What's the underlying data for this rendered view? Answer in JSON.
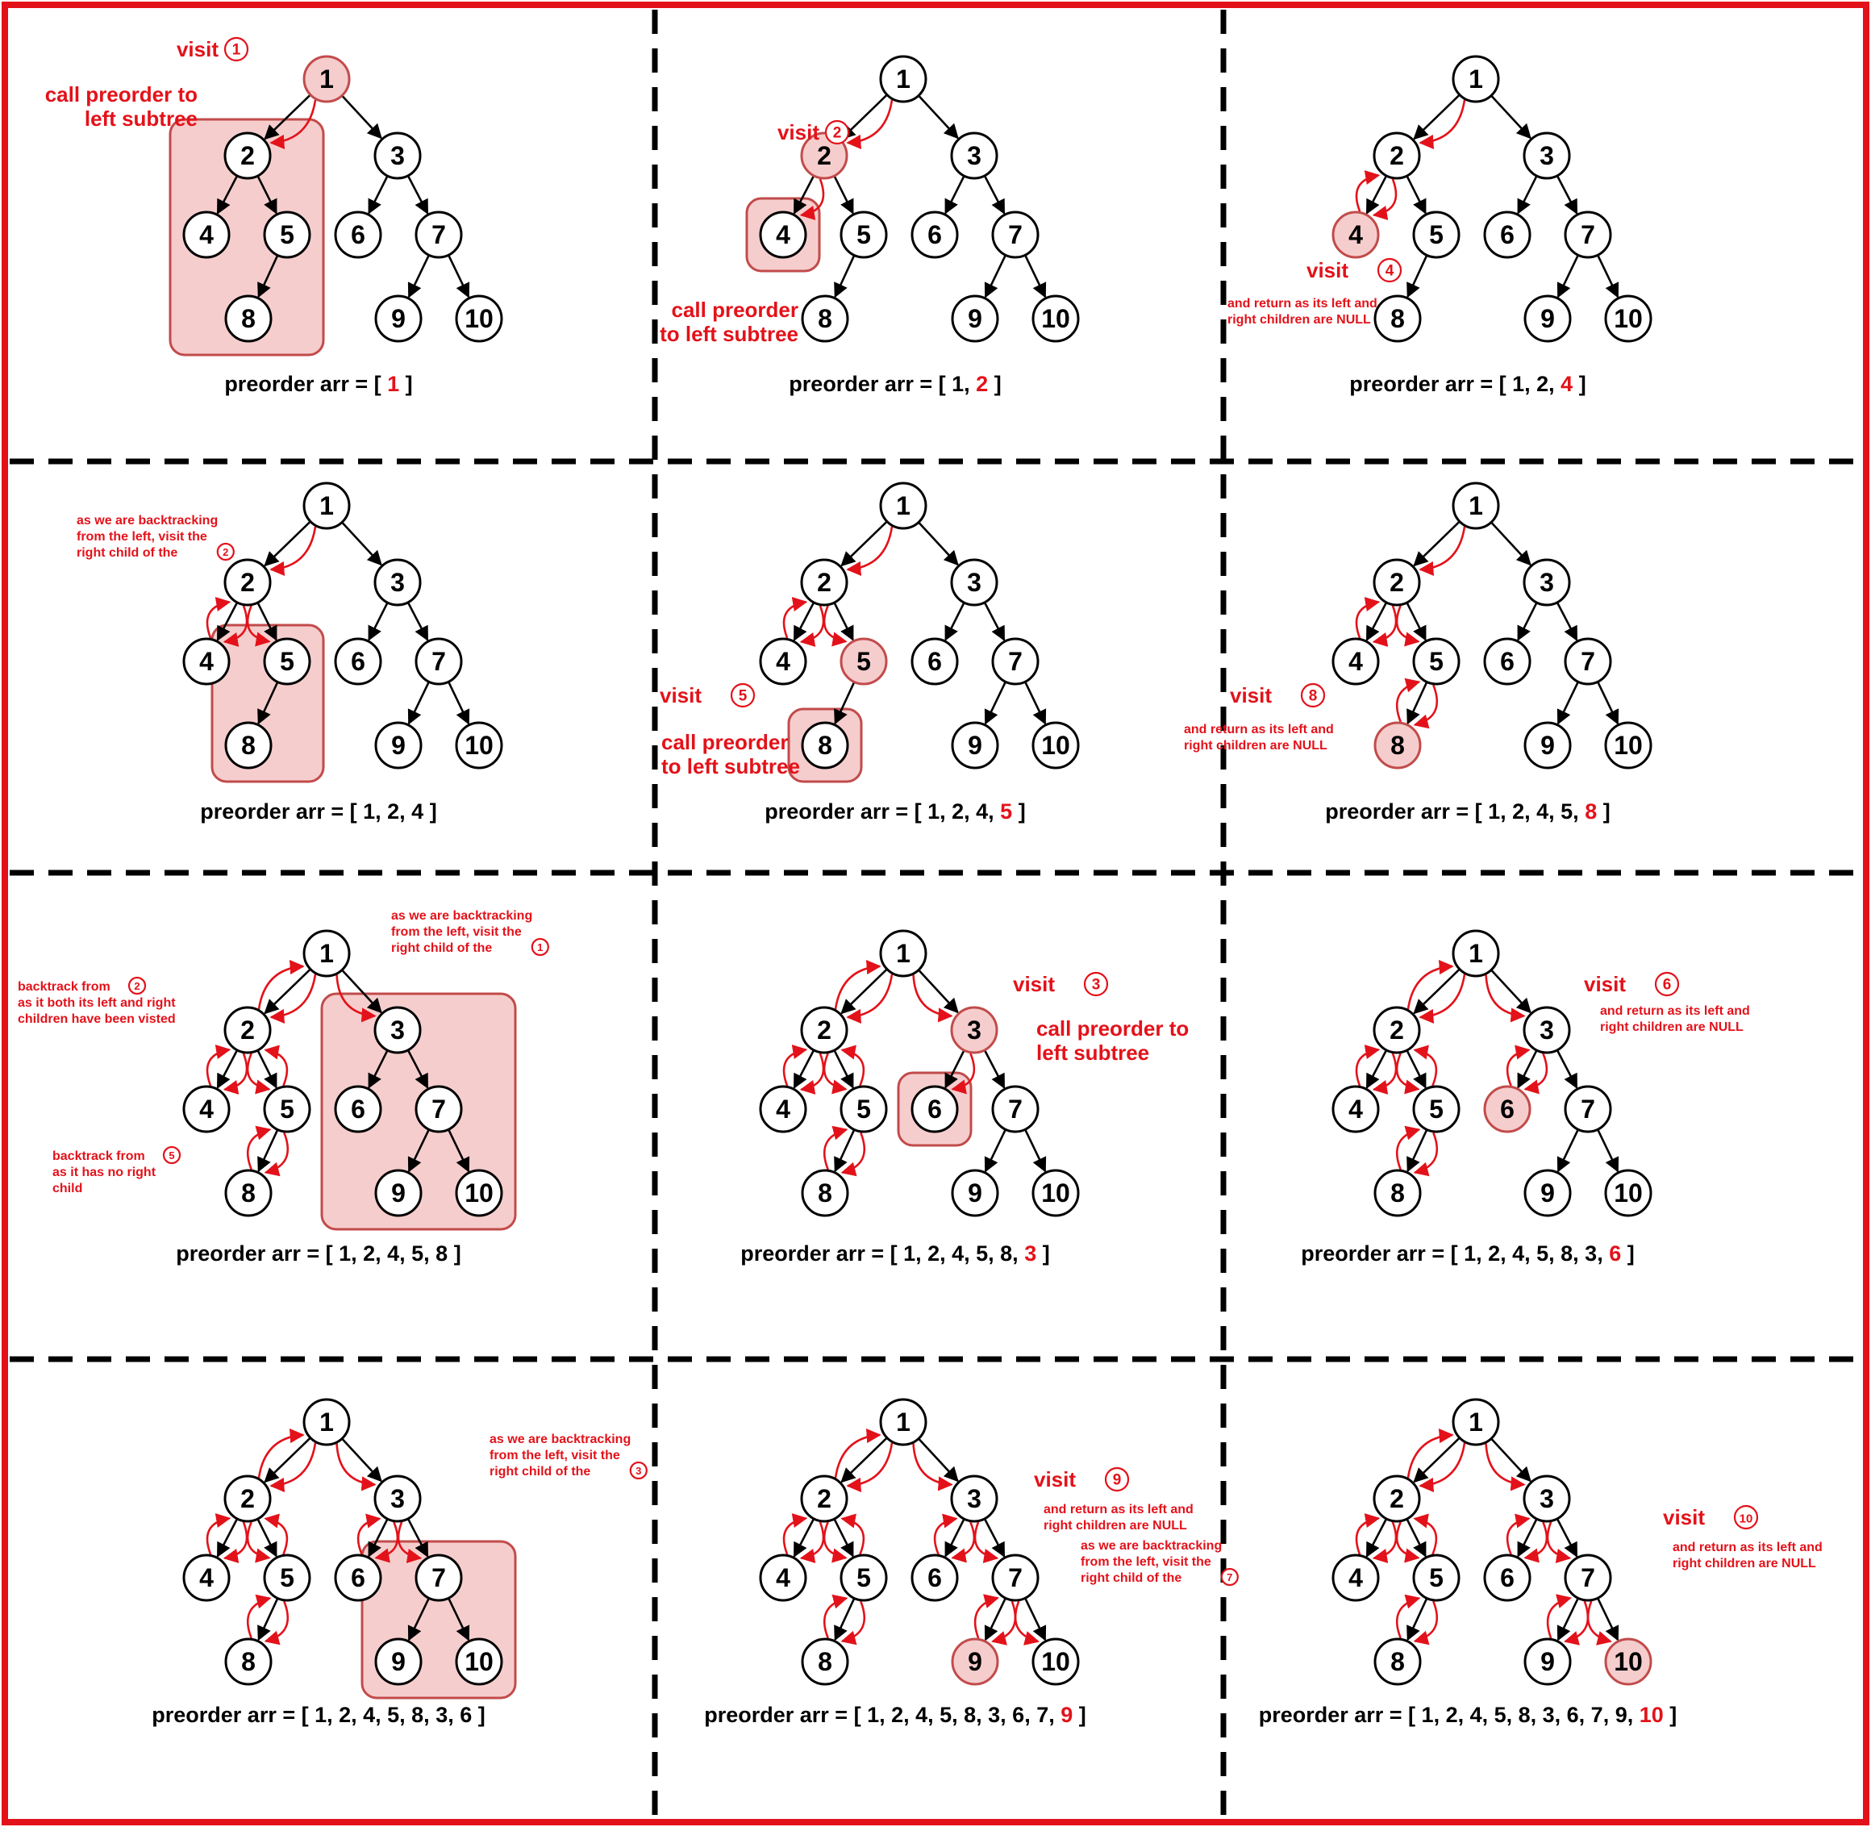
{
  "tree": {
    "nodes": [
      "1",
      "2",
      "3",
      "4",
      "5",
      "6",
      "7",
      "8",
      "9",
      "10"
    ],
    "edges": [
      [
        "1",
        "2"
      ],
      [
        "1",
        "3"
      ],
      [
        "2",
        "4"
      ],
      [
        "2",
        "5"
      ],
      [
        "5",
        "8"
      ],
      [
        "3",
        "6"
      ],
      [
        "3",
        "7"
      ],
      [
        "7",
        "9"
      ],
      [
        "7",
        "10"
      ]
    ]
  },
  "colors": {
    "frame": "#e3121a",
    "annotation": "#e3121a",
    "highlight_fill": "#f6cdcd",
    "highlight_stroke": "#c24b4b",
    "edge": "#000000",
    "divider": "#000000"
  },
  "arr_prefix": "preorder arr = [ ",
  "arr_suffix": " ]",
  "panels": [
    {
      "visited_before": "",
      "new_value": "1",
      "highlight": "1",
      "box": "left-subtree-of-1",
      "annotations": [
        {
          "style": "big",
          "lines": [
            "visit "
          ],
          "badge": "1"
        },
        {
          "style": "big",
          "lines": [
            "call preorder to",
            "left subtree"
          ]
        }
      ]
    },
    {
      "visited_before": "1, ",
      "new_value": "2",
      "highlight": "2",
      "box": "node-4",
      "annotations": [
        {
          "style": "big",
          "lines": [
            "visit "
          ],
          "badge": "2"
        },
        {
          "style": "big",
          "lines": [
            "call preorder",
            "to left subtree"
          ]
        }
      ]
    },
    {
      "visited_before": "1, 2, ",
      "new_value": "4",
      "highlight": "4",
      "box": "",
      "annotations": [
        {
          "style": "big",
          "lines": [
            "visit "
          ],
          "badge": "4"
        },
        {
          "style": "small",
          "lines": [
            "and return as its left and",
            "right children are NULL"
          ]
        }
      ]
    },
    {
      "visited_before": "1, 2, 4",
      "new_value": "",
      "highlight": "",
      "box": "subtree-of-5",
      "annotations": [
        {
          "style": "small",
          "lines": [
            "as  we  are  backtracking",
            "from  the  left,  visit  the",
            "right child of the "
          ],
          "badge": "2"
        }
      ]
    },
    {
      "visited_before": "1, 2, 4, ",
      "new_value": "5",
      "highlight": "5",
      "box": "node-8",
      "annotations": [
        {
          "style": "big",
          "lines": [
            "visit "
          ],
          "badge": "5"
        },
        {
          "style": "big",
          "lines": [
            "call preorder",
            "to left subtree"
          ]
        }
      ]
    },
    {
      "visited_before": "1, 2, 4, 5, ",
      "new_value": "8",
      "highlight": "8",
      "box": "",
      "annotations": [
        {
          "style": "big",
          "lines": [
            "visit "
          ],
          "badge": "8"
        },
        {
          "style": "small",
          "lines": [
            "and return as its left and",
            "right children are NULL"
          ]
        }
      ]
    },
    {
      "visited_before": "1, 2, 4, 5, 8",
      "new_value": "",
      "highlight": "",
      "box": "right-subtree-of-1",
      "annotations": [
        {
          "style": "small",
          "lines": [
            "as  we  are  backtracking",
            "from  the  left,  visit  the",
            "right child of the "
          ],
          "badge": "1"
        },
        {
          "style": "small",
          "lines": [
            "backtrack from ",
            "as it both its left and right",
            "children have been visted"
          ],
          "badge": "2"
        },
        {
          "style": "small",
          "lines": [
            "backtrack from ",
            "as  it  has  no  right",
            "child"
          ],
          "badge": "5"
        }
      ]
    },
    {
      "visited_before": "1, 2, 4, 5, 8, ",
      "new_value": "3",
      "highlight": "3",
      "box": "node-6",
      "annotations": [
        {
          "style": "big",
          "lines": [
            "visit "
          ],
          "badge": "3"
        },
        {
          "style": "big",
          "lines": [
            "call preorder to",
            "left subtree"
          ]
        }
      ]
    },
    {
      "visited_before": "1, 2, 4, 5, 8, 3, ",
      "new_value": "6",
      "highlight": "6",
      "box": "",
      "annotations": [
        {
          "style": "big",
          "lines": [
            "visit "
          ],
          "badge": "6"
        },
        {
          "style": "small",
          "lines": [
            "and return as its left and",
            "right children are NULL"
          ]
        }
      ]
    },
    {
      "visited_before": "1, 2, 4, 5, 8, 3, 6",
      "new_value": "",
      "highlight": "",
      "box": "subtree-of-7",
      "annotations": [
        {
          "style": "small",
          "lines": [
            "as  we  are  backtracking",
            "from  the  left,  visit  the",
            "right child of the "
          ],
          "badge": "3"
        }
      ]
    },
    {
      "visited_before": "1, 2, 4, 5, 8, 3, 6, 7, ",
      "new_value": "9",
      "highlight": "9",
      "box": "",
      "annotations": [
        {
          "style": "big",
          "lines": [
            "visit "
          ],
          "badge": "9"
        },
        {
          "style": "small",
          "lines": [
            "and return as its left and",
            "right children are NULL"
          ]
        },
        {
          "style": "small",
          "lines": [
            "as  we  are  backtracking",
            "from  the  left,  visit  the",
            "right child of the "
          ],
          "badge": "7"
        }
      ]
    },
    {
      "visited_before": "1, 2, 4, 5, 8, 3, 6, 7, 9, ",
      "new_value": "10",
      "highlight": "10",
      "box": "",
      "annotations": [
        {
          "style": "big",
          "lines": [
            "visit "
          ],
          "badge": "10"
        },
        {
          "style": "small",
          "lines": [
            "and return as its left and",
            "right children are NULL"
          ]
        }
      ]
    }
  ]
}
